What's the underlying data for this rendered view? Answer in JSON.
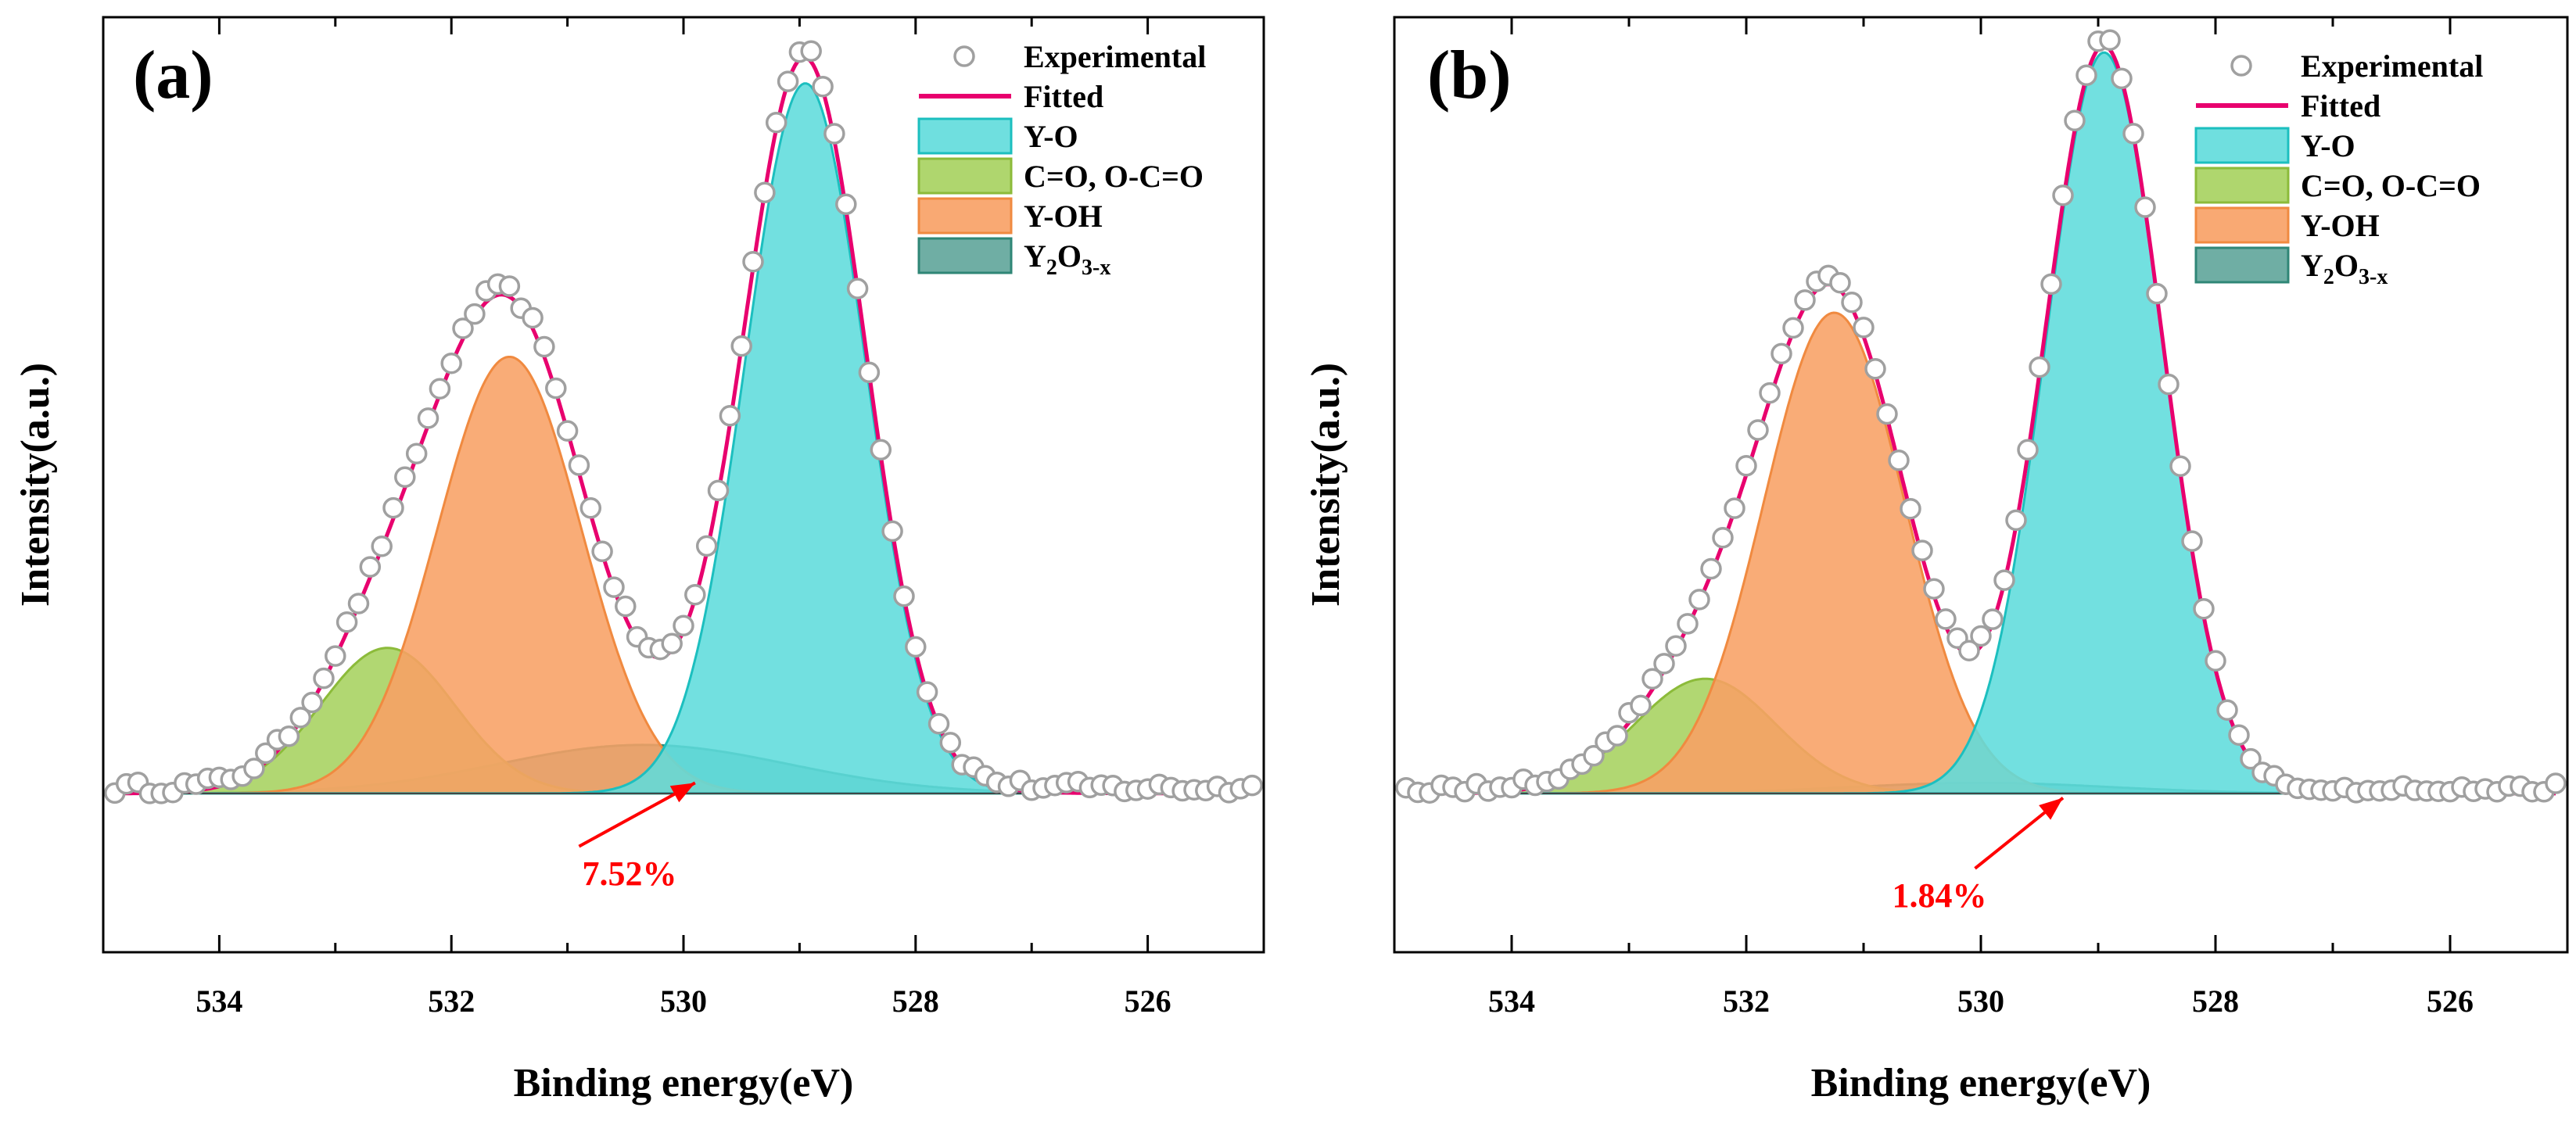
{
  "colors": {
    "experimental": "#a0a0a0",
    "fitted": "#e8006e",
    "y_o": "#5fdcdc",
    "y_o_edge": "#1cbfbf",
    "c_o": "#a6d25e",
    "c_o_edge": "#8cbb3a",
    "y_oh": "#f8a064",
    "y_oh_edge": "#f08a40",
    "y2o3x": "#5fa59a",
    "y2o3x_edge": "#2f8676",
    "annotation": "#ff0000",
    "axis": "#000000"
  },
  "chart_data": [
    {
      "type": "line",
      "panel_label": "(a)",
      "xlabel": "Binding energy(eV)",
      "ylabel": "Intensity(a.u.)",
      "xlim": [
        535,
        525
      ],
      "ylim": [
        -0.18,
        0.88
      ],
      "x_ticks": [
        534,
        532,
        530,
        528,
        526
      ],
      "x_tick_labels": [
        "534",
        "532",
        "530",
        "528",
        "526"
      ],
      "y_ticks_shown": false,
      "baseline": 0.0,
      "legend": {
        "placement": "top-right",
        "entries": [
          "Experimental",
          "Fitted",
          "Y-O",
          "C=O, O-C=O",
          "Y-OH",
          "Y2O3-x"
        ]
      },
      "components": [
        {
          "name": "Y-O",
          "center": 528.95,
          "sigma": 0.52,
          "amplitude": 0.805,
          "color_key": "y_o"
        },
        {
          "name": "C=O, O-C=O",
          "center": 532.55,
          "sigma": 0.58,
          "amplitude": 0.165,
          "color_key": "c_o"
        },
        {
          "name": "Y-OH",
          "center": 531.5,
          "sigma": 0.62,
          "amplitude": 0.495,
          "color_key": "y_oh"
        },
        {
          "name": "Y2O3-x",
          "center": 530.35,
          "sigma": 1.25,
          "amplitude": 0.055,
          "color_key": "y2o3x"
        }
      ],
      "experimental_points": {
        "x_start": 534.9,
        "x_end": 525.1,
        "step": 0.1,
        "noise": 0.007
      },
      "annotation": {
        "text": "7.52%",
        "arrow_from": [
          530.9,
          -0.06
        ],
        "arrow_to": [
          529.9,
          0.012
        ]
      }
    },
    {
      "type": "line",
      "panel_label": "(b)",
      "xlabel": "Binding energy(eV)",
      "ylabel": "Intensity(a.u.)",
      "xlim": [
        535,
        525
      ],
      "ylim": [
        -0.18,
        0.88
      ],
      "x_ticks": [
        534,
        532,
        530,
        528,
        526
      ],
      "x_tick_labels": [
        "534",
        "532",
        "530",
        "528",
        "526"
      ],
      "y_ticks_shown": false,
      "baseline": 0.0,
      "legend": {
        "placement": "top-right",
        "entries": [
          "Experimental",
          "Fitted",
          "Y-O",
          "C=O, O-C=O",
          "Y-OH",
          "Y2O3-x"
        ]
      },
      "components": [
        {
          "name": "Y-O",
          "center": 528.95,
          "sigma": 0.5,
          "amplitude": 0.84,
          "color_key": "y_o"
        },
        {
          "name": "C=O, O-C=O",
          "center": 532.35,
          "sigma": 0.6,
          "amplitude": 0.13,
          "color_key": "c_o"
        },
        {
          "name": "Y-OH",
          "center": 531.25,
          "sigma": 0.6,
          "amplitude": 0.545,
          "color_key": "y_oh"
        },
        {
          "name": "Y2O3-x",
          "center": 530.0,
          "sigma": 1.1,
          "amplitude": 0.012,
          "color_key": "y2o3x"
        }
      ],
      "experimental_points": {
        "x_start": 534.9,
        "x_end": 525.1,
        "step": 0.1,
        "noise": 0.006
      },
      "annotation": {
        "text": "1.84%",
        "arrow_from": [
          530.05,
          -0.085
        ],
        "arrow_to": [
          529.3,
          -0.005
        ]
      }
    }
  ]
}
